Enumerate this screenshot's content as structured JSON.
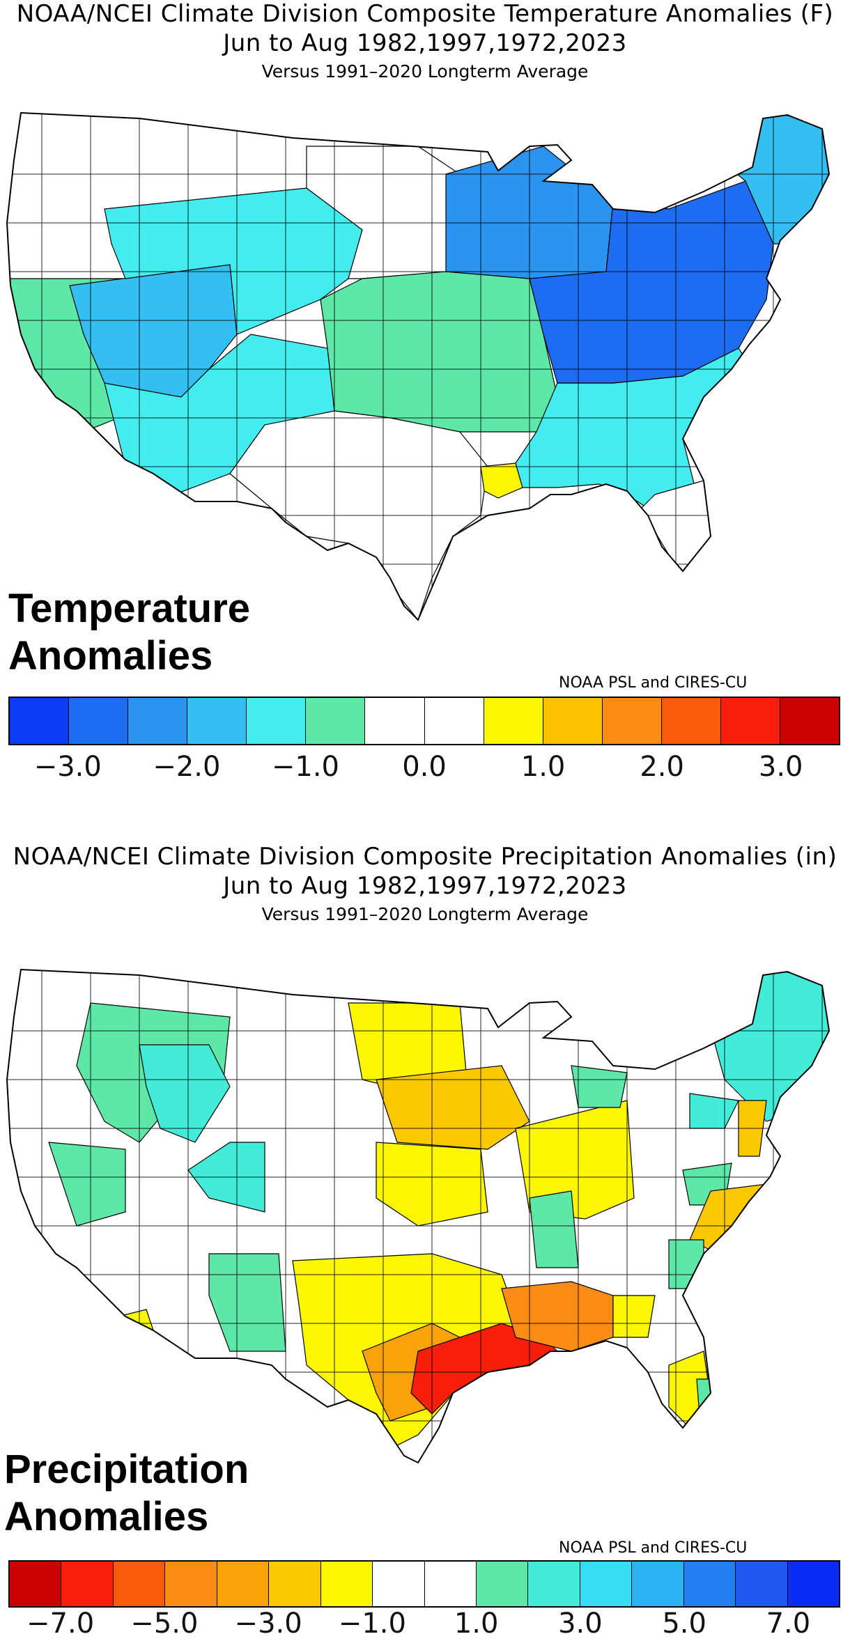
{
  "temperature": {
    "title_line1": "NOAA/NCEI Climate Division Composite Temperature Anomalies (F)",
    "title_line2": "Jun to Aug   1982,1997,1972,2023",
    "title_line3": "Versus 1991–2020 Longterm Average",
    "panel_label_line1": "Temperature",
    "panel_label_line2": "Anomalies",
    "credit": "NOAA PSL and CIRES-CU",
    "colorbar": {
      "colors": [
        "#0a3cf5",
        "#1e6cf2",
        "#2b94f0",
        "#34bff2",
        "#43ecee",
        "#5ee8a8",
        "#ffffff",
        "#ffffff",
        "#fbf700",
        "#fcc100",
        "#fb8c14",
        "#fb5a0a",
        "#f81e0c",
        "#cc0000"
      ],
      "tick_labels": [
        "−3.0",
        "−2.0",
        "−1.0",
        "0.0",
        "1.0",
        "2.0",
        "3.0"
      ],
      "tick_boundaries": [
        1,
        3,
        5,
        7,
        9,
        11,
        13
      ]
    },
    "map_regions": [
      {
        "name": "northwest",
        "color": "#ffffff"
      },
      {
        "name": "west-coast",
        "color": "#5ee8a8"
      },
      {
        "name": "great-basin",
        "color": "#34bff2"
      },
      {
        "name": "southwest",
        "color": "#43ecee"
      },
      {
        "name": "northern-rockies",
        "color": "#43ecee"
      },
      {
        "name": "northern-plains",
        "color": "#ffffff"
      },
      {
        "name": "central-plains",
        "color": "#5ee8a8"
      },
      {
        "name": "texas",
        "color": "#ffffff"
      },
      {
        "name": "louisiana-coast",
        "color": "#fbf700"
      },
      {
        "name": "upper-midwest",
        "color": "#2b94f0"
      },
      {
        "name": "ohio-valley",
        "color": "#1e6cf2"
      },
      {
        "name": "northeast",
        "color": "#34bff2"
      },
      {
        "name": "southeast",
        "color": "#43ecee"
      },
      {
        "name": "florida",
        "color": "#ffffff"
      }
    ]
  },
  "precipitation": {
    "title_line1": "NOAA/NCEI Climate Division Composite Precipitation Anomalies (in)",
    "title_line2": "Jun to Aug   1982,1997,1972,2023",
    "title_line3": "Versus 1991–2020 Longterm Average",
    "panel_label_line1": "Precipitation",
    "panel_label_line2": "Anomalies",
    "credit": "NOAA PSL and CIRES-CU",
    "colorbar": {
      "colors": [
        "#cc0000",
        "#f81e0c",
        "#fb5a0a",
        "#fb8c14",
        "#fba20a",
        "#fcc800",
        "#fbf700",
        "#ffffff",
        "#ffffff",
        "#5ee8a8",
        "#43ecd8",
        "#34dff5",
        "#2bb4f5",
        "#2180f2",
        "#1e58f2",
        "#0a2cf5"
      ],
      "tick_labels": [
        "−7.0",
        "−5.0",
        "−3.0",
        "−1.0",
        "1.0",
        "3.0",
        "5.0",
        "7.0"
      ],
      "tick_boundaries": [
        1,
        3,
        5,
        7,
        9,
        11,
        13,
        15
      ]
    },
    "map_regions": [
      {
        "name": "west-coast",
        "color": "#ffffff"
      },
      {
        "name": "northern-rockies",
        "color": "#5ee8a8"
      },
      {
        "name": "montana-plains",
        "color": "#43ecd8"
      },
      {
        "name": "southwest",
        "color": "#ffffff"
      },
      {
        "name": "arizona",
        "color": "#fbf700"
      },
      {
        "name": "new-mexico",
        "color": "#5ee8a8"
      },
      {
        "name": "dakotas",
        "color": "#fbf700"
      },
      {
        "name": "iowa-nebraska",
        "color": "#fcc800"
      },
      {
        "name": "ohio-valley",
        "color": "#fbf700"
      },
      {
        "name": "great-lakes",
        "color": "#ffffff"
      },
      {
        "name": "northeast",
        "color": "#43ecd8"
      },
      {
        "name": "texas-interior",
        "color": "#fbf700"
      },
      {
        "name": "texas-coast",
        "color": "#f81e0c"
      },
      {
        "name": "louisiana",
        "color": "#fb8c14"
      },
      {
        "name": "southeast",
        "color": "#ffffff"
      },
      {
        "name": "carolinas",
        "color": "#fcc800"
      },
      {
        "name": "florida",
        "color": "#fbf700"
      }
    ]
  }
}
